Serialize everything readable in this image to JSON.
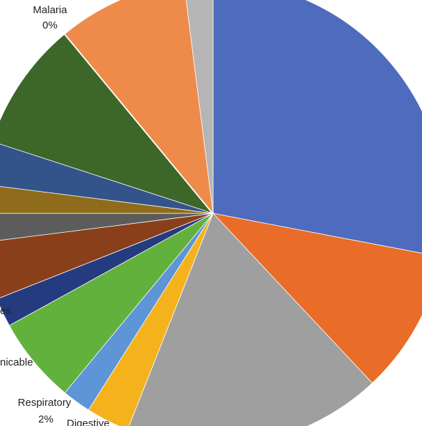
{
  "chart_data": {
    "type": "pie",
    "categories": [
      null,
      null,
      null,
      "Digestive",
      "Respiratory",
      "nicable",
      "es",
      null,
      null,
      null,
      null,
      null,
      "Malaria",
      null,
      null
    ],
    "values": [
      28,
      10,
      18,
      3,
      2,
      6,
      2,
      4,
      2,
      2,
      3,
      9,
      0,
      9,
      2
    ],
    "value_labels": [
      null,
      null,
      null,
      null,
      "2%",
      null,
      null,
      null,
      null,
      null,
      null,
      null,
      "0%",
      null,
      null
    ],
    "colors": [
      "#4f6bbd",
      "#e96c28",
      "#9f9f9f",
      "#f4b31c",
      "#5d95d6",
      "#63b13d",
      "#253b80",
      "#8a3f1b",
      "#5c5c5c",
      "#8f6c1b",
      "#33548a",
      "#3d6629",
      "#ffffff",
      "#ef8b4a",
      "#b5b5b5"
    ]
  }
}
